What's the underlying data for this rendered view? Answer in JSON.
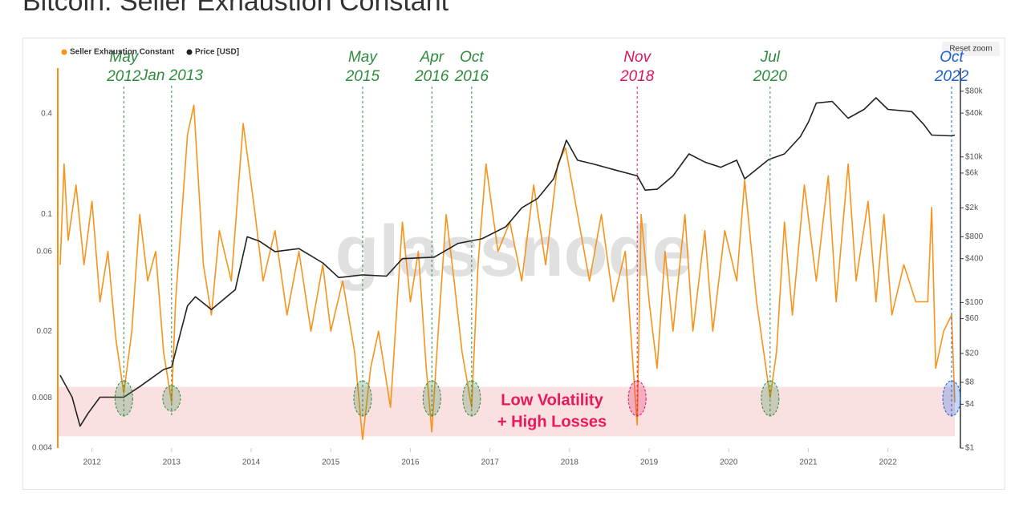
{
  "chart_data": {
    "type": "line",
    "title": "Bitcoin: Seller Exhaustion Constant",
    "reset_button": "Reset zoom",
    "watermark": "glassnode",
    "log_scale": true,
    "xlim": [
      2011.57,
      2022.84
    ],
    "xticks": [
      2012,
      2013,
      2014,
      2015,
      2016,
      2017,
      2018,
      2019,
      2020,
      2021,
      2022
    ],
    "ylim": [
      0.004,
      0.75
    ],
    "yticks": [
      0.004,
      0.008,
      0.02,
      0.06,
      0.1,
      0.4
    ],
    "y2lim": [
      1,
      166000
    ],
    "y2ticks": [
      {
        "value": 1,
        "label": "$1"
      },
      {
        "value": 4,
        "label": "$4"
      },
      {
        "value": 8,
        "label": "$8"
      },
      {
        "value": 20,
        "label": "$20"
      },
      {
        "value": 60,
        "label": "$60"
      },
      {
        "value": 100,
        "label": "$100"
      },
      {
        "value": 400,
        "label": "$400"
      },
      {
        "value": 800,
        "label": "$800"
      },
      {
        "value": 2000,
        "label": "$2k"
      },
      {
        "value": 6000,
        "label": "$6k"
      },
      {
        "value": 10000,
        "label": "$10k"
      },
      {
        "value": 40000,
        "label": "$40k"
      },
      {
        "value": 80000,
        "label": "$80k"
      }
    ],
    "series": [
      {
        "name": "Seller Exhaustion Constant",
        "color": "#f7931a",
        "axis": "y",
        "x": [
          2011.6,
          2011.65,
          2011.7,
          2011.8,
          2011.9,
          2012.0,
          2012.1,
          2012.2,
          2012.3,
          2012.4,
          2012.5,
          2012.6,
          2012.7,
          2012.8,
          2012.9,
          2013.0,
          2013.05,
          2013.2,
          2013.28,
          2013.4,
          2013.5,
          2013.6,
          2013.75,
          2013.9,
          2014.05,
          2014.15,
          2014.3,
          2014.45,
          2014.6,
          2014.75,
          2014.9,
          2015.0,
          2015.15,
          2015.3,
          2015.4,
          2015.5,
          2015.6,
          2015.75,
          2015.9,
          2016.0,
          2016.1,
          2016.2,
          2016.27,
          2016.35,
          2016.45,
          2016.55,
          2016.65,
          2016.77,
          2016.85,
          2016.95,
          2017.1,
          2017.25,
          2017.4,
          2017.55,
          2017.7,
          2017.85,
          2017.95,
          2018.1,
          2018.25,
          2018.4,
          2018.55,
          2018.7,
          2018.8,
          2018.85,
          2018.9,
          2019.0,
          2019.1,
          2019.2,
          2019.3,
          2019.45,
          2019.55,
          2019.7,
          2019.8,
          2019.95,
          2020.1,
          2020.2,
          2020.35,
          2020.52,
          2020.6,
          2020.7,
          2020.8,
          2020.95,
          2021.1,
          2021.25,
          2021.35,
          2021.5,
          2021.6,
          2021.75,
          2021.85,
          2021.95,
          2022.05,
          2022.2,
          2022.35,
          2022.5,
          2022.55,
          2022.6,
          2022.7,
          2022.8,
          2022.84
        ],
        "values": [
          0.05,
          0.2,
          0.07,
          0.15,
          0.05,
          0.12,
          0.03,
          0.06,
          0.018,
          0.0085,
          0.02,
          0.1,
          0.04,
          0.06,
          0.015,
          0.0075,
          0.03,
          0.3,
          0.45,
          0.05,
          0.025,
          0.08,
          0.04,
          0.35,
          0.1,
          0.04,
          0.08,
          0.025,
          0.06,
          0.02,
          0.05,
          0.02,
          0.04,
          0.015,
          0.0045,
          0.012,
          0.02,
          0.007,
          0.09,
          0.03,
          0.06,
          0.012,
          0.005,
          0.02,
          0.1,
          0.04,
          0.015,
          0.007,
          0.05,
          0.2,
          0.06,
          0.09,
          0.04,
          0.15,
          0.05,
          0.2,
          0.25,
          0.1,
          0.04,
          0.1,
          0.03,
          0.06,
          0.012,
          0.0055,
          0.1,
          0.03,
          0.012,
          0.06,
          0.02,
          0.1,
          0.02,
          0.08,
          0.02,
          0.08,
          0.04,
          0.16,
          0.03,
          0.008,
          0.015,
          0.09,
          0.025,
          0.15,
          0.04,
          0.17,
          0.03,
          0.2,
          0.04,
          0.12,
          0.03,
          0.1,
          0.025,
          0.05,
          0.03,
          0.03,
          0.11,
          0.012,
          0.02,
          0.025,
          0.0075
        ]
      },
      {
        "name": "Price [USD]",
        "color": "#222222",
        "axis": "y2",
        "x": [
          2011.6,
          2011.75,
          2011.85,
          2011.95,
          2012.1,
          2012.4,
          2012.6,
          2012.9,
          2013.0,
          2013.2,
          2013.3,
          2013.5,
          2013.8,
          2013.95,
          2014.1,
          2014.3,
          2014.6,
          2014.9,
          2015.1,
          2015.4,
          2015.7,
          2015.9,
          2016.3,
          2016.6,
          2016.9,
          2017.2,
          2017.4,
          2017.6,
          2017.8,
          2017.96,
          2018.1,
          2018.3,
          2018.6,
          2018.85,
          2018.95,
          2019.1,
          2019.3,
          2019.5,
          2019.7,
          2019.9,
          2020.1,
          2020.2,
          2020.5,
          2020.7,
          2020.9,
          2021.0,
          2021.1,
          2021.3,
          2021.5,
          2021.7,
          2021.85,
          2022.0,
          2022.3,
          2022.45,
          2022.55,
          2022.8,
          2022.84
        ],
        "values": [
          10,
          5,
          2,
          3,
          5,
          5,
          7,
          12,
          13,
          90,
          120,
          80,
          150,
          800,
          700,
          500,
          550,
          350,
          220,
          240,
          230,
          400,
          420,
          650,
          750,
          1100,
          2000,
          2700,
          5000,
          17000,
          9000,
          8000,
          6500,
          5500,
          3500,
          3600,
          5500,
          11000,
          8500,
          7200,
          9000,
          5000,
          9200,
          11000,
          19000,
          30000,
          55000,
          58000,
          34000,
          45000,
          65000,
          45000,
          42000,
          28000,
          20000,
          19500,
          20000
        ]
      }
    ],
    "band": {
      "range": [
        0.0047,
        0.0093
      ],
      "color": "#f9d3d6",
      "label": [
        "Low Volatility",
        "+ High Losses"
      ],
      "label_color": "#e8185c"
    },
    "annotations": [
      {
        "lines": [
          "May",
          "2012"
        ],
        "x": 2012.4,
        "color": "#2e8b3e"
      },
      {
        "lines": [
          "Jan 2013"
        ],
        "x": 2013.0,
        "color": "#2e8b3e"
      },
      {
        "lines": [
          "May",
          "2015"
        ],
        "x": 2015.4,
        "color": "#2e8b3e"
      },
      {
        "lines": [
          "Apr",
          "2016"
        ],
        "x": 2016.27,
        "color": "#2e8b3e"
      },
      {
        "lines": [
          "Oct",
          "2016"
        ],
        "x": 2016.77,
        "color": "#2e8b3e"
      },
      {
        "lines": [
          "Nov",
          "2018"
        ],
        "x": 2018.85,
        "color": "#e0145c"
      },
      {
        "lines": [
          "Jul",
          "2020"
        ],
        "x": 2020.52,
        "color": "#2e8b3e"
      },
      {
        "lines": [
          "Oct",
          "2022"
        ],
        "x": 2022.8,
        "color": "#1a5fd6"
      }
    ]
  }
}
